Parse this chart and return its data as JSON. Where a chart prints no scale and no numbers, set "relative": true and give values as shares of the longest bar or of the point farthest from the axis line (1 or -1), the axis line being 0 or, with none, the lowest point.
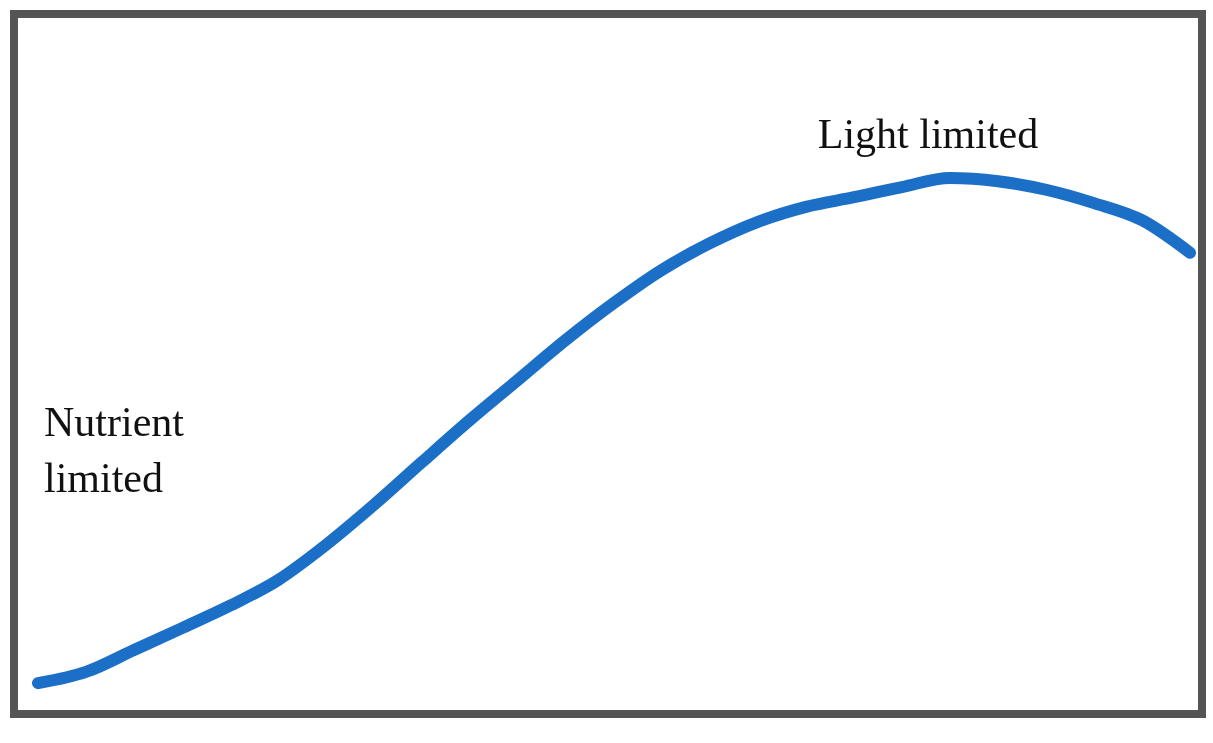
{
  "chart_data": {
    "type": "line",
    "relative": true,
    "categories": [
      null,
      null,
      null,
      null,
      null,
      null,
      null,
      null,
      null,
      null,
      null,
      null,
      null,
      null,
      null,
      null,
      null,
      null,
      null,
      null,
      null,
      null,
      null,
      null,
      null
    ],
    "series": [
      {
        "color": "#1b6fc6",
        "values": [
          0.054,
          0.075,
          0.116,
          0.157,
          0.199,
          0.247,
          0.313,
          0.388,
          0.468,
          0.547,
          0.622,
          0.697,
          0.766,
          0.828,
          0.878,
          0.918,
          0.946,
          0.964,
          0.983,
          1.0,
          0.994,
          0.978,
          0.953,
          0.921,
          0.86
        ]
      }
    ],
    "annotations": [
      "Light limited",
      "Nutrient limited"
    ],
    "line_style": "solid",
    "marker": "none"
  }
}
